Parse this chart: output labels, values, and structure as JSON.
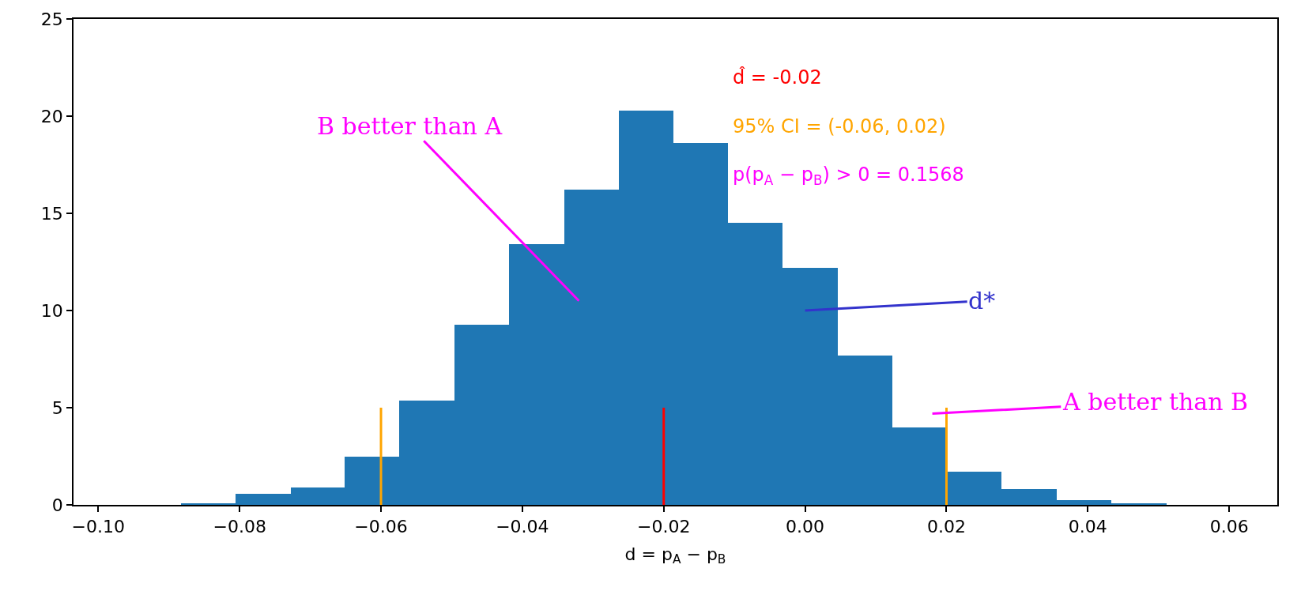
{
  "chart_data": {
    "type": "histogram",
    "xlabel": "d = p$_{A}$ − p$_{B}$",
    "bins": [
      -0.0883,
      -0.0806,
      -0.0728,
      -0.0651,
      -0.0574,
      -0.0496,
      -0.0419,
      -0.0341,
      -0.0264,
      -0.0186,
      -0.0109,
      -0.0032,
      0.0046,
      0.0123,
      0.0201,
      0.0278,
      0.0356,
      0.0433,
      0.0511
    ],
    "values": [
      0.1,
      0.55,
      0.9,
      2.5,
      5.35,
      9.25,
      13.4,
      16.2,
      20.3,
      18.6,
      14.5,
      12.2,
      7.7,
      4.0,
      1.7,
      0.8,
      0.25,
      0.08
    ],
    "color": "#1f77b4",
    "xlim": [
      -0.1035,
      0.0668
    ],
    "xticks": [
      {
        "value": -0.1,
        "label": "−0.10"
      },
      {
        "value": -0.08,
        "label": "−0.08"
      },
      {
        "value": -0.06,
        "label": "−0.06"
      },
      {
        "value": -0.04,
        "label": "−0.04"
      },
      {
        "value": -0.02,
        "label": "−0.02"
      },
      {
        "value": 0,
        "label": "0.00"
      },
      {
        "value": 0.02,
        "label": "0.02"
      },
      {
        "value": 0.04,
        "label": "0.04"
      },
      {
        "value": 0.06,
        "label": "0.06"
      }
    ],
    "ylim": [
      0,
      25
    ],
    "yticks": [
      0,
      5,
      10,
      15,
      20,
      25
    ],
    "ref_lines": [
      {
        "axis": "x",
        "value": -0.06,
        "color": "#ffa500"
      },
      {
        "axis": "x",
        "value": -0.02,
        "color": "#ff0000"
      },
      {
        "axis": "x",
        "value": 0.02,
        "color": "#ffa500"
      }
    ],
    "annotations": [
      "d̂ = -0.02",
      "95% CI = (-0.06, 0.02)",
      "p(p$_{A}$ − p$_{B}$) > 0 = 0.1568",
      "B better than A",
      "d*",
      "A better than B"
    ]
  }
}
